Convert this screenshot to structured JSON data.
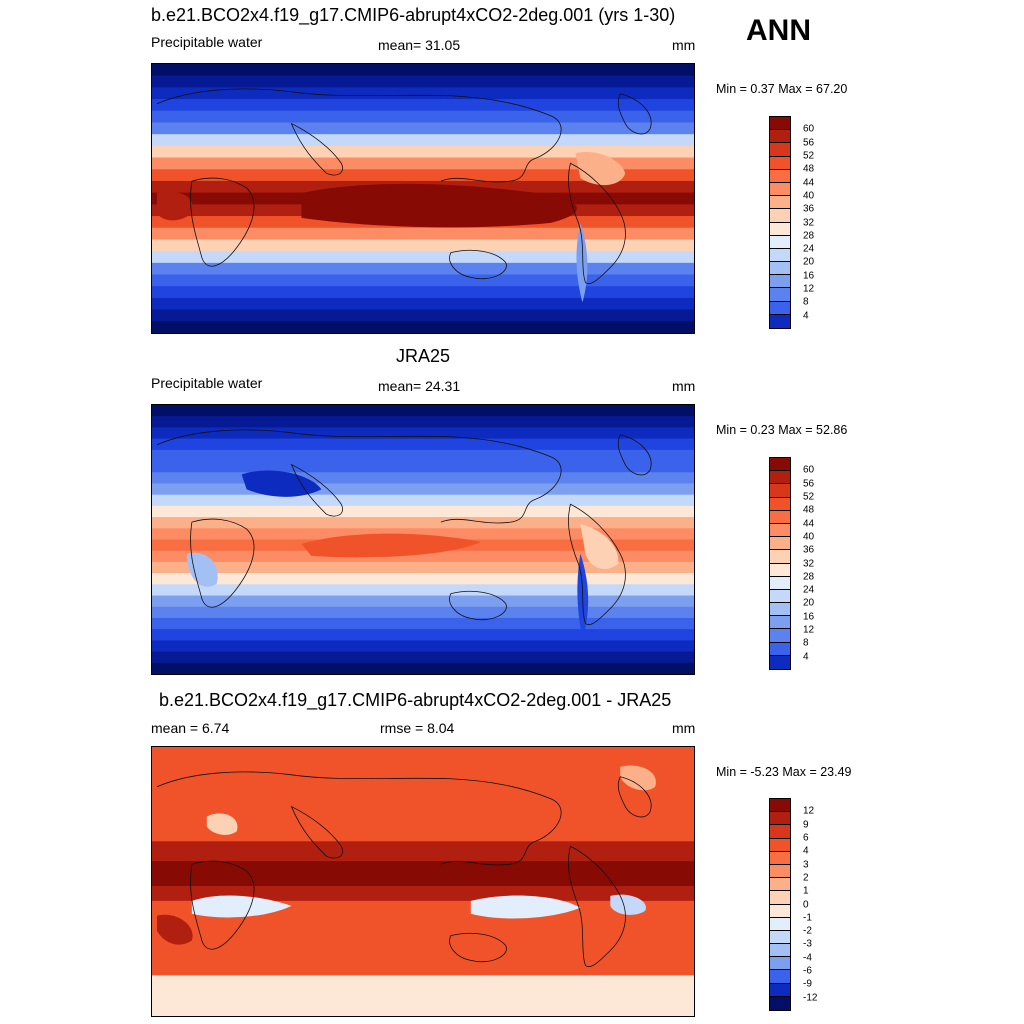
{
  "season": "ANN",
  "colors": {
    "warm": [
      "#fde8d7",
      "#fdd1b4",
      "#fcb08a",
      "#fb8c63",
      "#f86d42",
      "#f0532a",
      "#d9371c",
      "#b11f10",
      "#870a05"
    ],
    "cool": [
      "#e3eefc",
      "#c4d9f9",
      "#a3c0f4",
      "#7d9ff0",
      "#5b82ee",
      "#3a62eb",
      "#1f44e0",
      "#0d2bbf",
      "#071a95",
      "#020f66"
    ]
  },
  "panels": [
    {
      "title": "b.e21.BCO2x4.f19_g17.CMIP6-abrupt4xCO2-2deg.001 (yrs 1-30)",
      "left_label": "Precipitable water",
      "center_label": "mean=  31.05",
      "units": "mm",
      "minmax": "Min =   0.37 Max =  67.20",
      "map_icon": "global-precipitable-water-map",
      "colorbar": {
        "labels": [
          "60",
          "56",
          "52",
          "48",
          "44",
          "40",
          "36",
          "32",
          "28",
          "24",
          "20",
          "16",
          "12",
          "8",
          "4"
        ],
        "colors": [
          "#870a05",
          "#b11f10",
          "#d9371c",
          "#f0532a",
          "#f86d42",
          "#fb8c63",
          "#fcb08a",
          "#fdd1b4",
          "#fde8d7",
          "#e3eefc",
          "#c4d9f9",
          "#a3c0f4",
          "#7d9ff0",
          "#5b82ee",
          "#3a62eb",
          "#0d2bbf"
        ]
      }
    },
    {
      "title": "JRA25",
      "left_label": "Precipitable water",
      "center_label": "mean=  24.31",
      "units": "mm",
      "minmax": "Min =   0.23 Max =  52.86",
      "map_icon": "global-precipitable-water-map",
      "colorbar": {
        "labels": [
          "60",
          "56",
          "52",
          "48",
          "44",
          "40",
          "36",
          "32",
          "28",
          "24",
          "20",
          "16",
          "12",
          "8",
          "4"
        ],
        "colors": [
          "#870a05",
          "#b11f10",
          "#d9371c",
          "#f0532a",
          "#f86d42",
          "#fb8c63",
          "#fcb08a",
          "#fdd1b4",
          "#fde8d7",
          "#e3eefc",
          "#c4d9f9",
          "#a3c0f4",
          "#7d9ff0",
          "#5b82ee",
          "#3a62eb",
          "#0d2bbf"
        ]
      }
    },
    {
      "title": "b.e21.BCO2x4.f19_g17.CMIP6-abrupt4xCO2-2deg.001 - JRA25",
      "left_label": "mean =   6.74",
      "center_label": "rmse =   8.04",
      "units": "mm",
      "minmax": "Min =  -5.23 Max =  23.49",
      "map_icon": "global-difference-map",
      "colorbar": {
        "labels": [
          "12",
          "9",
          "6",
          "4",
          "3",
          "2",
          "1",
          "0",
          "-1",
          "-2",
          "-3",
          "-4",
          "-6",
          "-9",
          "-12"
        ],
        "colors": [
          "#870a05",
          "#b11f10",
          "#d9371c",
          "#f0532a",
          "#f86d42",
          "#fb8c63",
          "#fcb08a",
          "#fdd1b4",
          "#fde8d7",
          "#e3eefc",
          "#c4d9f9",
          "#a3c0f4",
          "#7d9ff0",
          "#3a62eb",
          "#0d2bbf",
          "#020f66"
        ]
      }
    }
  ]
}
